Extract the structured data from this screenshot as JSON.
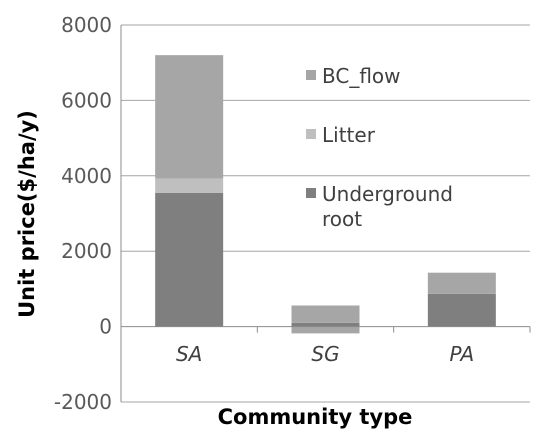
{
  "chart_data": {
    "type": "bar",
    "stacked": true,
    "xlabel": "Community type",
    "ylabel": "Unit price($/ha/y)",
    "categories": [
      "SA",
      "SG",
      "PA"
    ],
    "ylim": [
      -2000,
      8000
    ],
    "yticks": [
      -2000,
      0,
      2000,
      4000,
      6000,
      8000
    ],
    "grid": true,
    "legend_position": "top-right",
    "series": [
      {
        "name": "Underground root",
        "color": "#7f7f7f",
        "values": [
          3550,
          100,
          870
        ]
      },
      {
        "name": "Litter",
        "color": "#bfbfbf",
        "values": [
          380,
          0,
          0
        ]
      },
      {
        "name": "BC_flow",
        "color": "#a6a6a6",
        "values": [
          3270,
          460,
          560
        ]
      }
    ],
    "negative_segments": [
      {
        "category": "SG",
        "value": -180,
        "color": "#a6a6a6"
      }
    ]
  },
  "legend": {
    "items": [
      {
        "label": "BC_flow",
        "color": "#a6a6a6"
      },
      {
        "label": "Litter",
        "color": "#bfbfbf"
      },
      {
        "label": "Underground",
        "label2": "root",
        "color": "#7f7f7f"
      }
    ]
  }
}
